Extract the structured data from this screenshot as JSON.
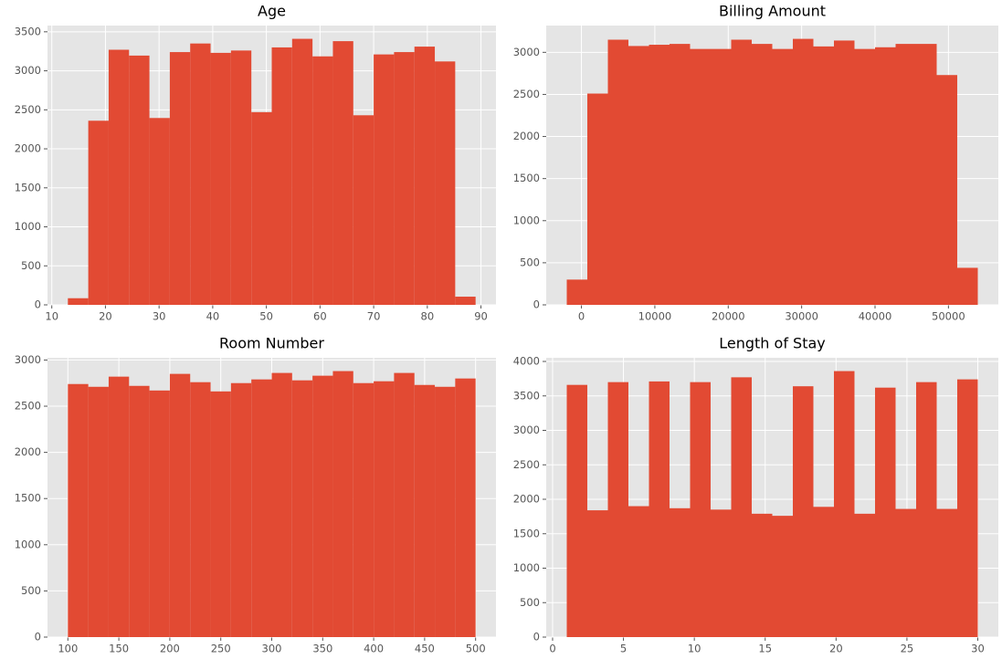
{
  "chart_data": [
    {
      "type": "histogram",
      "title": "Age",
      "color": "#e24a33",
      "grid": true,
      "bins": [
        13,
        16.8,
        20.6,
        24.4,
        28.2,
        32,
        35.8,
        39.6,
        43.4,
        47.2,
        51,
        54.8,
        58.6,
        62.4,
        66.2,
        70,
        73.8,
        77.6,
        81.4,
        85.2,
        89
      ],
      "values": [
        85,
        2360,
        3270,
        3195,
        2395,
        3240,
        3350,
        3230,
        3260,
        2470,
        3300,
        3410,
        3185,
        3380,
        2430,
        3210,
        3240,
        3310,
        3120,
        105
      ],
      "xlim": [
        9.2,
        92.8
      ],
      "xticks": [
        10,
        20,
        30,
        40,
        50,
        60,
        70,
        80,
        90
      ],
      "ylim": [
        0,
        3580
      ],
      "yticks": [
        0,
        500,
        1000,
        1500,
        2000,
        2500,
        3000,
        3500
      ]
    },
    {
      "type": "histogram",
      "title": "Billing Amount",
      "color": "#e24a33",
      "grid": true,
      "bins": [
        -2000,
        800,
        3600,
        6400,
        9200,
        12000,
        14800,
        17600,
        20400,
        23200,
        26000,
        28800,
        31600,
        34400,
        37200,
        40000,
        42800,
        45600,
        48400,
        51200,
        54000
      ],
      "values": [
        300,
        2510,
        3150,
        3075,
        3090,
        3100,
        3040,
        3040,
        3150,
        3100,
        3040,
        3160,
        3070,
        3140,
        3040,
        3060,
        3100,
        3100,
        2730,
        440
      ],
      "xlim": [
        -4800,
        56800
      ],
      "xticks": [
        0,
        10000,
        20000,
        30000,
        40000,
        50000
      ],
      "ylim": [
        0,
        3318
      ],
      "yticks": [
        0,
        500,
        1000,
        1500,
        2000,
        2500,
        3000
      ]
    },
    {
      "type": "histogram",
      "title": "Room Number",
      "color": "#e24a33",
      "grid": true,
      "bins": [
        100,
        120,
        140,
        160,
        180,
        200,
        220,
        240,
        260,
        280,
        300,
        320,
        340,
        360,
        380,
        400,
        420,
        440,
        460,
        480,
        500
      ],
      "values": [
        2740,
        2710,
        2820,
        2720,
        2670,
        2850,
        2760,
        2660,
        2750,
        2790,
        2860,
        2780,
        2830,
        2880,
        2750,
        2770,
        2860,
        2730,
        2710,
        2800
      ],
      "xlim": [
        80,
        520
      ],
      "xticks": [
        100,
        150,
        200,
        250,
        300,
        350,
        400,
        450,
        500
      ],
      "ylim": [
        0,
        3024
      ],
      "yticks": [
        0,
        500,
        1000,
        1500,
        2000,
        2500,
        3000
      ]
    },
    {
      "type": "histogram",
      "title": "Length of Stay",
      "color": "#e24a33",
      "grid": true,
      "bins": [
        1,
        2.45,
        3.9,
        5.35,
        6.8,
        8.25,
        9.7,
        11.15,
        12.6,
        14.05,
        15.5,
        16.95,
        18.4,
        19.85,
        21.3,
        22.75,
        24.2,
        25.65,
        27.1,
        28.55,
        30
      ],
      "values": [
        3660,
        1840,
        3700,
        1900,
        3710,
        1870,
        3700,
        1850,
        3770,
        1790,
        1760,
        3640,
        1890,
        3860,
        1790,
        3620,
        1860,
        3700,
        1860,
        3740
      ],
      "xlim": [
        -0.45,
        31.45
      ],
      "xticks": [
        0,
        5,
        10,
        15,
        20,
        25,
        30
      ],
      "ylim": [
        0,
        4053
      ],
      "yticks": [
        0,
        500,
        1000,
        1500,
        2000,
        2500,
        3000,
        3500,
        4000
      ]
    }
  ]
}
